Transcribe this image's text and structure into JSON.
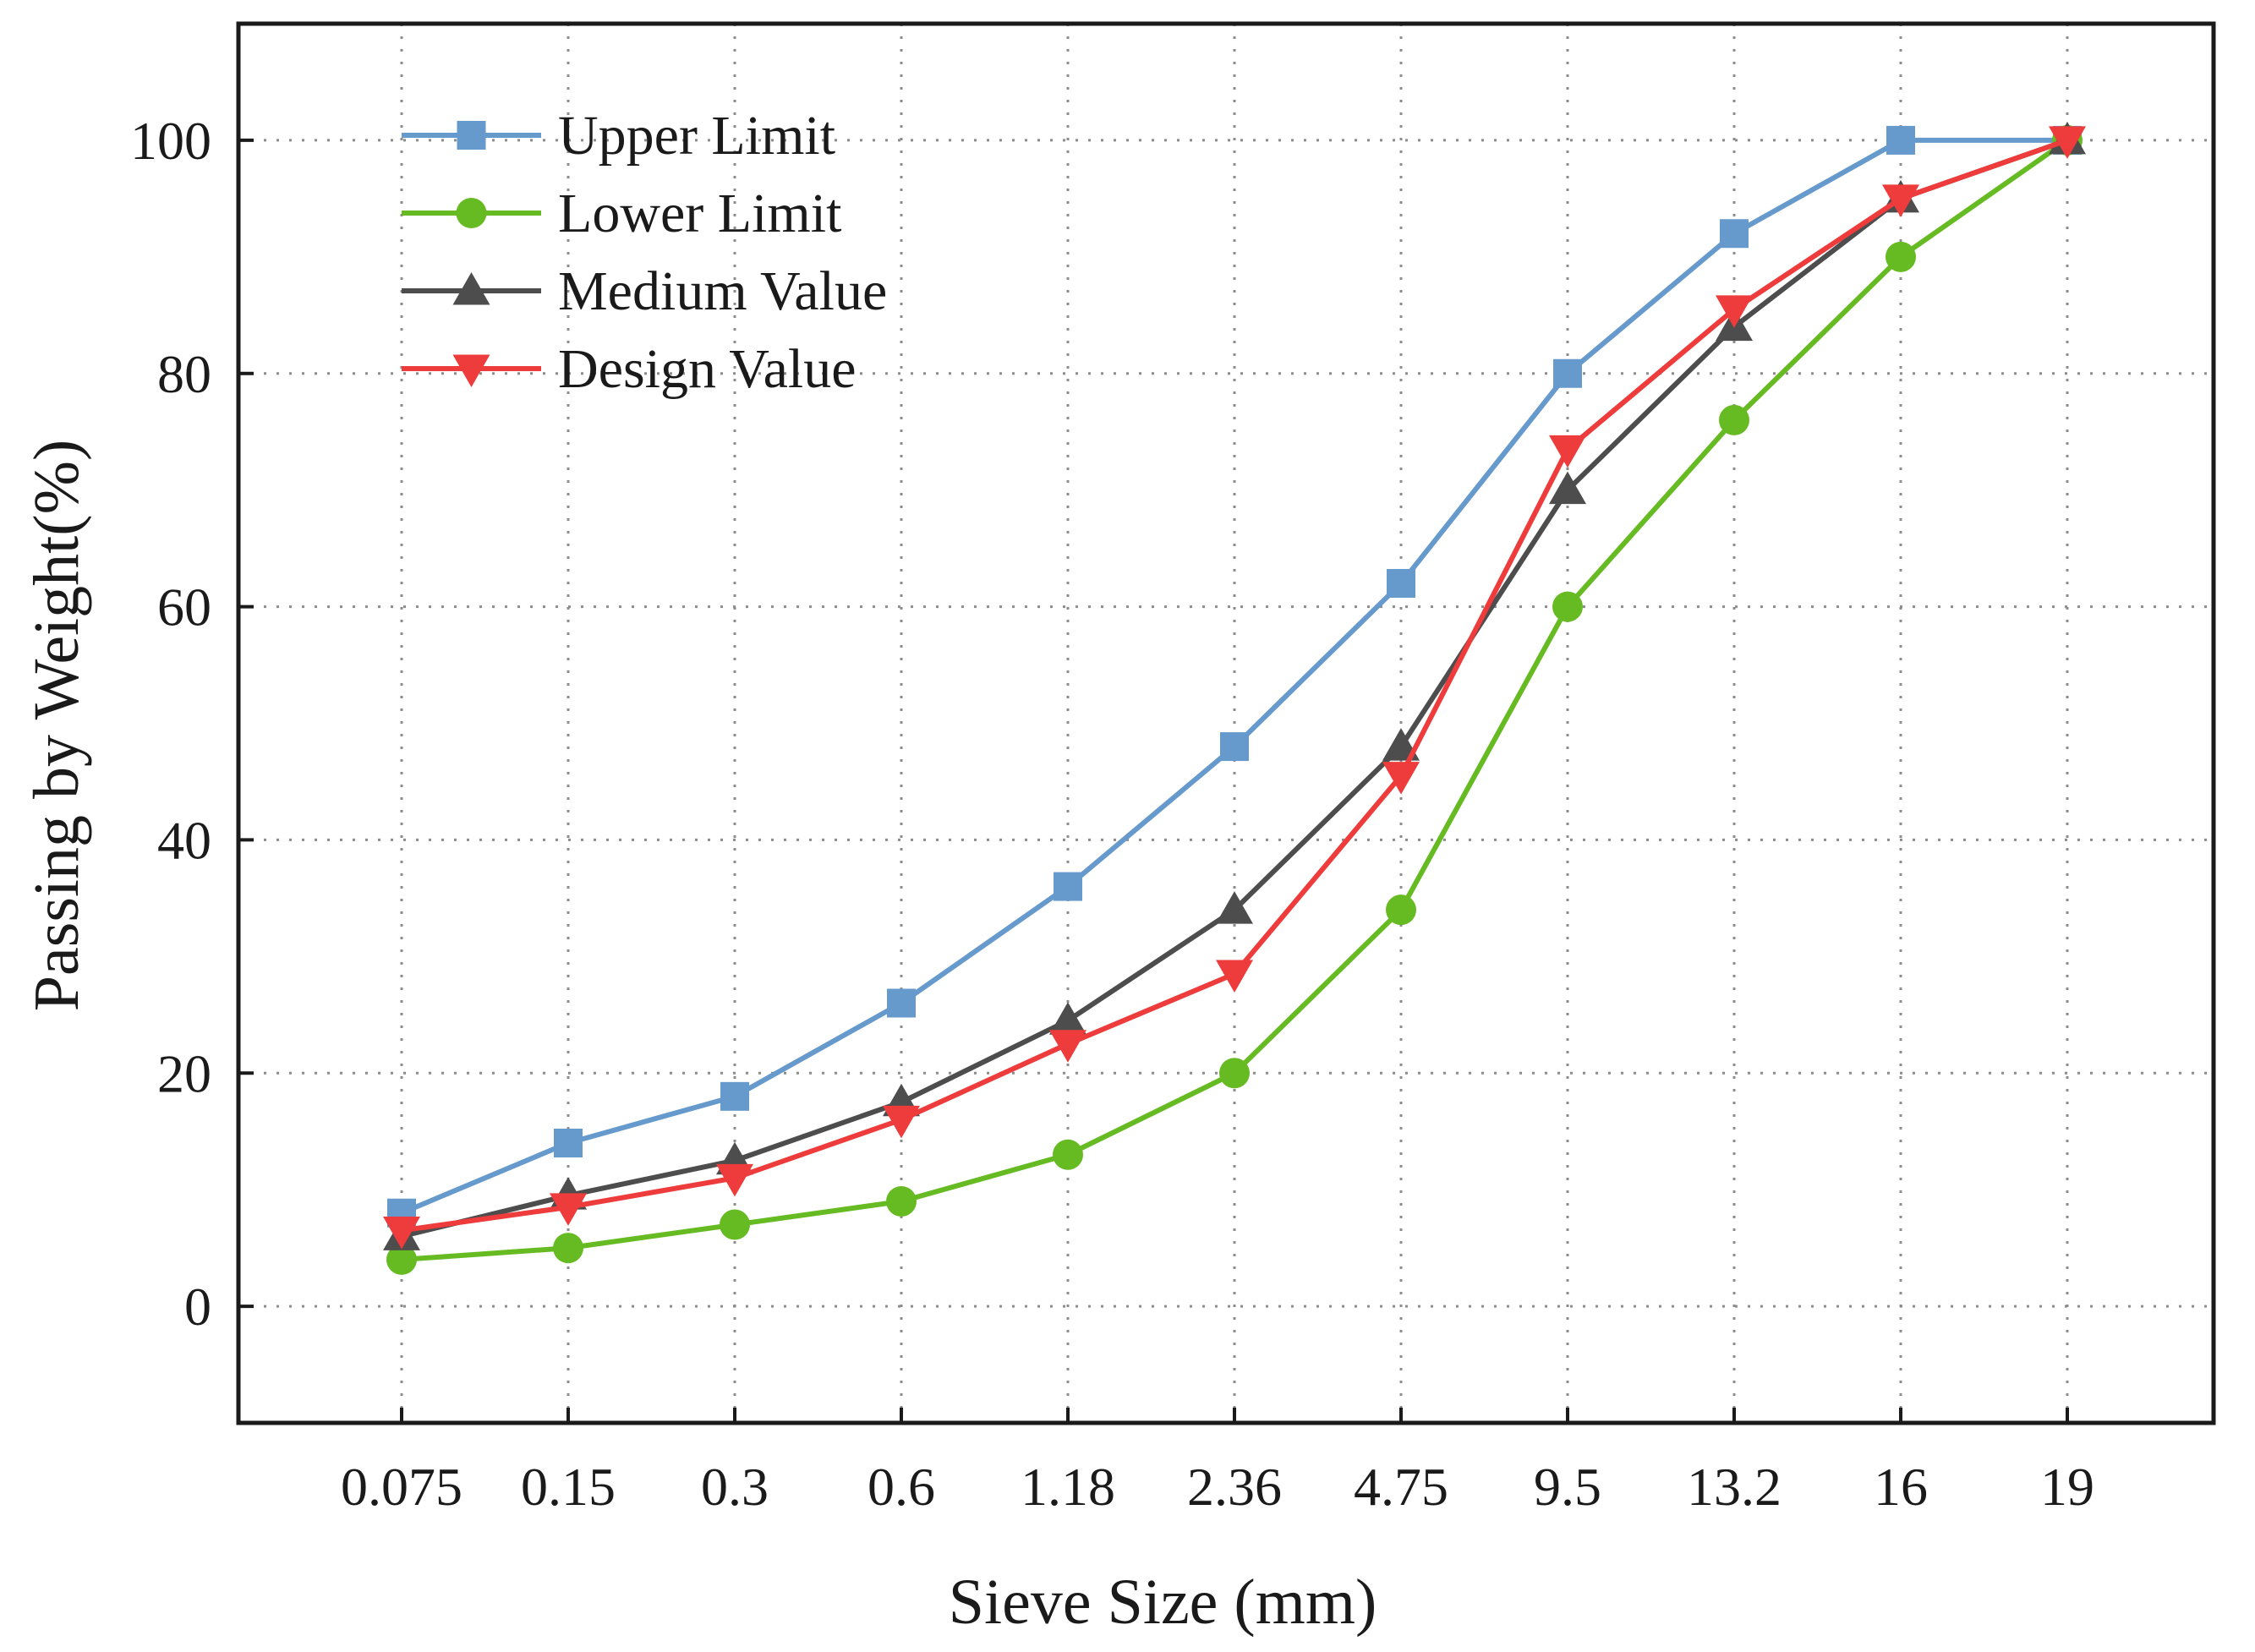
{
  "chart_data": {
    "type": "line",
    "title": "",
    "xlabel": "Sieve Size (mm)",
    "ylabel": "Passing by Weight(%)",
    "categories": [
      "0.075",
      "0.15",
      "0.3",
      "0.6",
      "1.18",
      "2.36",
      "4.75",
      "9.5",
      "13.2",
      "16",
      "19"
    ],
    "ylim": [
      -10,
      110
    ],
    "yticks": [
      "0",
      "20",
      "40",
      "60",
      "80",
      "100"
    ],
    "grid": true,
    "legend_position": "top-left",
    "series": [
      {
        "name": "Upper Limit",
        "color": "#6699CC",
        "marker": "square",
        "values": [
          8,
          14,
          18,
          26,
          36,
          48,
          62,
          80,
          92,
          100,
          100
        ]
      },
      {
        "name": "Lower Limit",
        "color": "#66BB22",
        "marker": "circle",
        "values": [
          4,
          5,
          7,
          9,
          13,
          20,
          34,
          60,
          76,
          90,
          100
        ]
      },
      {
        "name": "Medium Value",
        "color": "#4D4D4D",
        "marker": "triangle-up",
        "values": [
          6,
          9.5,
          12.5,
          17.5,
          24.5,
          34,
          48,
          70,
          84,
          95,
          100
        ]
      },
      {
        "name": "Design Value",
        "color": "#EE3B3B",
        "marker": "triangle-down",
        "values": [
          6.5,
          8.5,
          11,
          16,
          22.5,
          28.5,
          45.5,
          73.5,
          85.5,
          95,
          100
        ]
      }
    ]
  }
}
